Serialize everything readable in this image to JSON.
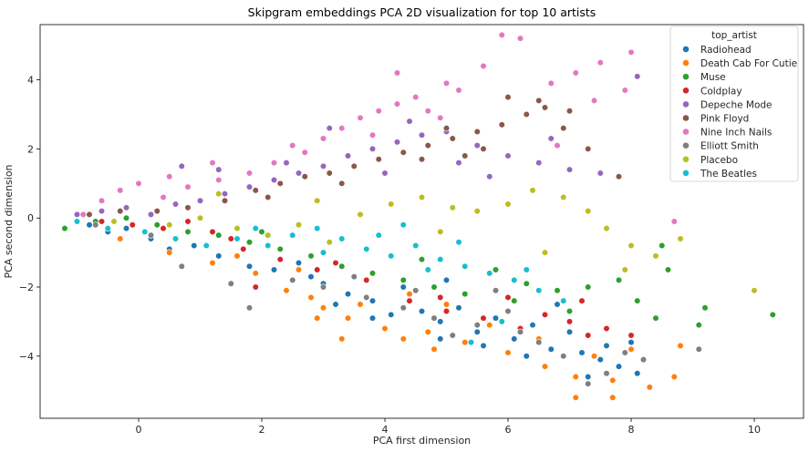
{
  "chart_data": {
    "type": "scatter",
    "title": "Skipgram embeddings PCA 2D visualization for top 10 artists",
    "xlabel": "PCA first dimension",
    "ylabel": "PCA second dimension",
    "xlim": [
      -1.6,
      10.8
    ],
    "ylim": [
      -5.8,
      5.6
    ],
    "xticks": [
      0,
      2,
      4,
      6,
      8,
      10
    ],
    "yticks": [
      -4,
      -2,
      0,
      2,
      4
    ],
    "legend": {
      "title": "top_artist",
      "position": "top-right"
    },
    "grid": false,
    "series": [
      {
        "name": "Radiohead",
        "color": "#1f77b4",
        "points": [
          [
            -0.8,
            -0.2
          ],
          [
            -0.5,
            -0.4
          ],
          [
            -0.2,
            -0.3
          ],
          [
            0.2,
            -0.6
          ],
          [
            0.5,
            -0.9
          ],
          [
            0.9,
            -0.8
          ],
          [
            1.3,
            -1.1
          ],
          [
            1.8,
            -1.4
          ],
          [
            2.2,
            -1.5
          ],
          [
            2.6,
            -1.3
          ],
          [
            3.0,
            -1.9
          ],
          [
            3.4,
            -2.2
          ],
          [
            3.8,
            -2.4
          ],
          [
            4.1,
            -2.8
          ],
          [
            4.3,
            -2.0
          ],
          [
            4.6,
            -2.7
          ],
          [
            4.9,
            -3.0
          ],
          [
            5.2,
            -2.6
          ],
          [
            5.5,
            -3.3
          ],
          [
            5.8,
            -2.9
          ],
          [
            6.1,
            -3.5
          ],
          [
            6.4,
            -3.1
          ],
          [
            6.7,
            -3.8
          ],
          [
            7.0,
            -3.3
          ],
          [
            7.2,
            -3.9
          ],
          [
            7.5,
            -4.1
          ],
          [
            7.8,
            -4.3
          ],
          [
            8.0,
            -3.6
          ],
          [
            8.1,
            -4.5
          ],
          [
            7.3,
            -4.6
          ],
          [
            6.3,
            -4.0
          ],
          [
            5.6,
            -3.7
          ],
          [
            4.9,
            -3.5
          ],
          [
            3.8,
            -2.9
          ],
          [
            3.2,
            -2.5
          ],
          [
            6.8,
            -2.5
          ],
          [
            7.6,
            -3.7
          ],
          [
            8.1,
            -2.4
          ],
          [
            5.0,
            -1.8
          ],
          [
            2.8,
            -1.7
          ]
        ]
      },
      {
        "name": "Death Cab For Cutie",
        "color": "#ff7f0e",
        "points": [
          [
            -0.3,
            -0.6
          ],
          [
            0.5,
            -1.0
          ],
          [
            1.2,
            -1.3
          ],
          [
            1.9,
            -1.6
          ],
          [
            2.4,
            -2.1
          ],
          [
            2.8,
            -2.3
          ],
          [
            3.0,
            -2.6
          ],
          [
            3.4,
            -2.9
          ],
          [
            3.6,
            -2.5
          ],
          [
            4.0,
            -3.2
          ],
          [
            4.3,
            -3.5
          ],
          [
            4.7,
            -3.3
          ],
          [
            5.3,
            -3.6
          ],
          [
            6.0,
            -3.9
          ],
          [
            6.6,
            -4.3
          ],
          [
            7.1,
            -4.6
          ],
          [
            7.1,
            -5.2
          ],
          [
            7.7,
            -5.2
          ],
          [
            8.3,
            -4.9
          ],
          [
            8.7,
            -4.6
          ],
          [
            8.8,
            -3.7
          ],
          [
            8.0,
            -3.8
          ],
          [
            7.4,
            -4.0
          ],
          [
            6.5,
            -3.5
          ],
          [
            5.7,
            -3.1
          ],
          [
            5.0,
            -2.5
          ],
          [
            4.4,
            -2.2
          ],
          [
            3.5,
            -1.7
          ],
          [
            2.6,
            -1.5
          ],
          [
            1.6,
            -1.1
          ],
          [
            3.3,
            -3.5
          ],
          [
            2.9,
            -2.9
          ],
          [
            7.7,
            -4.7
          ],
          [
            4.8,
            -3.8
          ]
        ]
      },
      {
        "name": "Muse",
        "color": "#2ca02c",
        "points": [
          [
            -1.2,
            -0.3
          ],
          [
            -0.7,
            -0.1
          ],
          [
            -0.2,
            0.0
          ],
          [
            0.3,
            -0.2
          ],
          [
            0.8,
            -0.4
          ],
          [
            1.3,
            -0.5
          ],
          [
            1.8,
            -0.7
          ],
          [
            2.3,
            -0.9
          ],
          [
            2.8,
            -1.1
          ],
          [
            3.3,
            -1.4
          ],
          [
            3.8,
            -1.6
          ],
          [
            4.3,
            -1.8
          ],
          [
            4.8,
            -2.0
          ],
          [
            5.3,
            -2.2
          ],
          [
            5.8,
            -1.5
          ],
          [
            6.3,
            -1.9
          ],
          [
            6.8,
            -2.1
          ],
          [
            7.3,
            -2.0
          ],
          [
            7.8,
            -1.8
          ],
          [
            8.1,
            -2.4
          ],
          [
            8.4,
            -2.9
          ],
          [
            8.6,
            -1.5
          ],
          [
            9.1,
            -3.1
          ],
          [
            9.2,
            -2.6
          ],
          [
            10.3,
            -2.8
          ],
          [
            8.5,
            -0.8
          ],
          [
            7.0,
            -2.7
          ],
          [
            6.1,
            -2.4
          ],
          [
            4.6,
            -1.2
          ],
          [
            2.0,
            -0.4
          ]
        ]
      },
      {
        "name": "Coldplay",
        "color": "#d62728",
        "points": [
          [
            -0.6,
            -0.1
          ],
          [
            -0.1,
            -0.2
          ],
          [
            0.4,
            -0.3
          ],
          [
            0.8,
            -0.1
          ],
          [
            1.2,
            -0.4
          ],
          [
            1.7,
            -0.9
          ],
          [
            1.9,
            -2.0
          ],
          [
            2.3,
            -1.2
          ],
          [
            2.9,
            -1.5
          ],
          [
            3.7,
            -1.8
          ],
          [
            4.4,
            -2.4
          ],
          [
            5.0,
            -2.7
          ],
          [
            5.6,
            -2.9
          ],
          [
            6.2,
            -3.2
          ],
          [
            6.6,
            -2.8
          ],
          [
            7.0,
            -3.0
          ],
          [
            7.3,
            -3.4
          ],
          [
            7.6,
            -3.2
          ],
          [
            8.0,
            -3.4
          ],
          [
            7.2,
            -2.4
          ],
          [
            6.0,
            -2.3
          ],
          [
            4.9,
            -2.3
          ],
          [
            3.2,
            -1.3
          ],
          [
            1.5,
            -0.6
          ]
        ]
      },
      {
        "name": "Depeche Mode",
        "color": "#9467bd",
        "points": [
          [
            -1.0,
            0.1
          ],
          [
            -0.6,
            0.2
          ],
          [
            -0.2,
            0.3
          ],
          [
            0.2,
            0.1
          ],
          [
            0.6,
            0.4
          ],
          [
            1.0,
            0.5
          ],
          [
            1.4,
            0.7
          ],
          [
            1.8,
            0.9
          ],
          [
            2.2,
            1.1
          ],
          [
            2.6,
            1.3
          ],
          [
            3.0,
            1.5
          ],
          [
            3.4,
            1.8
          ],
          [
            3.8,
            2.0
          ],
          [
            4.2,
            2.2
          ],
          [
            4.6,
            2.4
          ],
          [
            5.0,
            2.5
          ],
          [
            5.5,
            2.1
          ],
          [
            6.0,
            1.8
          ],
          [
            6.5,
            1.6
          ],
          [
            7.0,
            1.4
          ],
          [
            7.5,
            1.3
          ],
          [
            8.1,
            4.1
          ],
          [
            3.1,
            2.6
          ],
          [
            3.6,
            2.9
          ],
          [
            4.4,
            2.8
          ],
          [
            5.7,
            1.2
          ],
          [
            6.7,
            2.3
          ],
          [
            2.4,
            1.6
          ],
          [
            1.3,
            1.4
          ],
          [
            0.7,
            1.5
          ],
          [
            4.0,
            1.3
          ],
          [
            5.2,
            1.6
          ]
        ]
      },
      {
        "name": "Pink Floyd",
        "color": "#8c564b",
        "points": [
          [
            -0.8,
            0.1
          ],
          [
            -0.3,
            0.2
          ],
          [
            0.3,
            0.2
          ],
          [
            0.8,
            0.3
          ],
          [
            1.4,
            0.5
          ],
          [
            1.9,
            0.8
          ],
          [
            2.3,
            1.0
          ],
          [
            2.7,
            1.2
          ],
          [
            3.1,
            1.3
          ],
          [
            3.5,
            1.5
          ],
          [
            3.9,
            1.7
          ],
          [
            4.3,
            1.9
          ],
          [
            4.7,
            2.1
          ],
          [
            5.1,
            2.3
          ],
          [
            5.5,
            2.5
          ],
          [
            5.9,
            2.7
          ],
          [
            6.3,
            3.0
          ],
          [
            6.6,
            3.2
          ],
          [
            6.5,
            3.4
          ],
          [
            6.9,
            2.6
          ],
          [
            7.3,
            2.0
          ],
          [
            7.8,
            1.2
          ],
          [
            5.6,
            2.0
          ],
          [
            5.0,
            2.6
          ],
          [
            4.6,
            1.7
          ],
          [
            3.3,
            1.0
          ],
          [
            2.1,
            0.6
          ],
          [
            6.0,
            3.5
          ],
          [
            7.0,
            3.1
          ],
          [
            5.3,
            1.8
          ]
        ]
      },
      {
        "name": "Nine Inch Nails",
        "color": "#e377c2",
        "points": [
          [
            -0.9,
            0.1
          ],
          [
            -0.6,
            0.5
          ],
          [
            -0.3,
            0.8
          ],
          [
            0.0,
            1.0
          ],
          [
            0.4,
            0.6
          ],
          [
            0.8,
            0.9
          ],
          [
            1.3,
            1.1
          ],
          [
            1.8,
            1.3
          ],
          [
            2.2,
            1.6
          ],
          [
            2.7,
            1.9
          ],
          [
            3.0,
            2.3
          ],
          [
            3.3,
            2.6
          ],
          [
            3.6,
            2.9
          ],
          [
            3.9,
            3.1
          ],
          [
            4.2,
            3.3
          ],
          [
            4.5,
            3.5
          ],
          [
            4.7,
            3.1
          ],
          [
            5.0,
            3.9
          ],
          [
            5.2,
            3.7
          ],
          [
            5.6,
            4.4
          ],
          [
            5.9,
            5.3
          ],
          [
            6.2,
            5.2
          ],
          [
            6.7,
            3.9
          ],
          [
            7.1,
            4.2
          ],
          [
            7.5,
            4.5
          ],
          [
            7.9,
            3.7
          ],
          [
            8.0,
            4.8
          ],
          [
            7.4,
            3.4
          ],
          [
            8.7,
            -0.1
          ],
          [
            6.8,
            2.1
          ],
          [
            4.2,
            4.2
          ],
          [
            3.8,
            2.4
          ],
          [
            4.9,
            2.9
          ],
          [
            2.5,
            2.1
          ],
          [
            1.2,
            1.6
          ],
          [
            0.5,
            1.2
          ]
        ]
      },
      {
        "name": "Elliott Smith",
        "color": "#7f7f7f",
        "points": [
          [
            -0.7,
            -0.2
          ],
          [
            0.2,
            -0.5
          ],
          [
            0.7,
            -1.4
          ],
          [
            1.5,
            -1.9
          ],
          [
            1.8,
            -2.6
          ],
          [
            2.5,
            -1.8
          ],
          [
            3.0,
            -2.0
          ],
          [
            3.7,
            -2.3
          ],
          [
            4.3,
            -2.6
          ],
          [
            4.8,
            -2.9
          ],
          [
            5.1,
            -3.4
          ],
          [
            5.5,
            -3.1
          ],
          [
            6.0,
            -2.7
          ],
          [
            6.5,
            -3.6
          ],
          [
            6.9,
            -4.0
          ],
          [
            7.3,
            -4.8
          ],
          [
            7.6,
            -4.5
          ],
          [
            7.9,
            -3.9
          ],
          [
            8.2,
            -4.1
          ],
          [
            9.1,
            -3.8
          ],
          [
            6.2,
            -3.3
          ],
          [
            4.5,
            -2.1
          ],
          [
            3.5,
            -1.7
          ],
          [
            5.8,
            -2.1
          ]
        ]
      },
      {
        "name": "Placebo",
        "color": "#bcbd22",
        "points": [
          [
            -0.4,
            -0.1
          ],
          [
            0.5,
            -0.2
          ],
          [
            1.0,
            0.0
          ],
          [
            1.6,
            -0.3
          ],
          [
            2.1,
            -0.5
          ],
          [
            2.6,
            -0.2
          ],
          [
            3.1,
            -0.7
          ],
          [
            3.6,
            0.1
          ],
          [
            4.1,
            0.4
          ],
          [
            4.6,
            0.6
          ],
          [
            5.1,
            0.3
          ],
          [
            5.5,
            0.2
          ],
          [
            6.0,
            0.4
          ],
          [
            6.4,
            0.8
          ],
          [
            6.9,
            0.6
          ],
          [
            7.3,
            0.2
          ],
          [
            7.6,
            -0.3
          ],
          [
            8.0,
            -0.8
          ],
          [
            8.4,
            -1.1
          ],
          [
            8.8,
            -0.6
          ],
          [
            10.0,
            -2.1
          ],
          [
            7.9,
            -1.5
          ],
          [
            6.6,
            -1.0
          ],
          [
            4.9,
            -0.4
          ],
          [
            2.9,
            0.5
          ],
          [
            1.3,
            0.7
          ]
        ]
      },
      {
        "name": "The Beatles",
        "color": "#17becf",
        "points": [
          [
            -1.0,
            -0.1
          ],
          [
            -0.5,
            -0.3
          ],
          [
            0.1,
            -0.4
          ],
          [
            0.6,
            -0.6
          ],
          [
            1.1,
            -0.8
          ],
          [
            1.6,
            -0.6
          ],
          [
            2.1,
            -0.8
          ],
          [
            2.5,
            -0.5
          ],
          [
            2.9,
            -0.3
          ],
          [
            3.3,
            -0.6
          ],
          [
            3.7,
            -0.9
          ],
          [
            4.1,
            -1.1
          ],
          [
            4.5,
            -0.8
          ],
          [
            4.9,
            -1.2
          ],
          [
            5.3,
            -1.4
          ],
          [
            5.7,
            -1.6
          ],
          [
            6.1,
            -1.8
          ],
          [
            6.5,
            -2.1
          ],
          [
            6.9,
            -2.4
          ],
          [
            5.9,
            -3.0
          ],
          [
            5.4,
            -3.6
          ],
          [
            4.7,
            -1.5
          ],
          [
            3.9,
            -0.5
          ],
          [
            5.2,
            -0.7
          ],
          [
            6.3,
            -1.5
          ],
          [
            4.3,
            -0.2
          ],
          [
            3.0,
            -1.0
          ],
          [
            1.9,
            -0.3
          ]
        ]
      }
    ]
  }
}
